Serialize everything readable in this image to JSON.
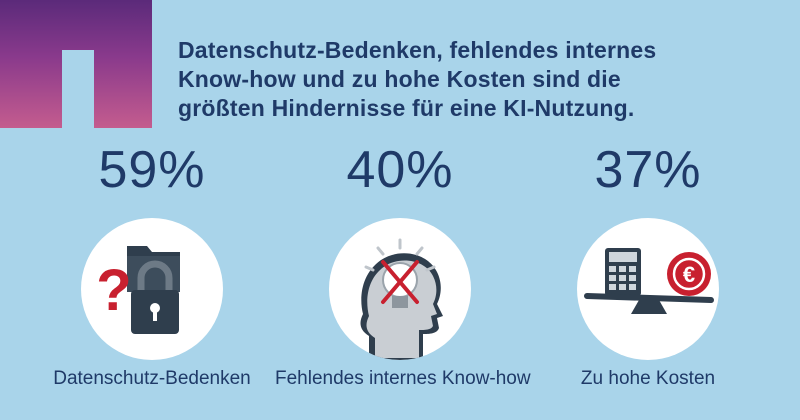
{
  "headline": {
    "line1": "Datenschutz-Bedenken, fehlendes internes",
    "line2": "Know-how und zu hohe Kosten sind die",
    "line3": "größten Hindernisse für eine KI-Nutzung."
  },
  "stats": [
    {
      "percent": "59%",
      "caption": "Datenschutz-Bedenken",
      "icon": "padlock-folder-question-icon"
    },
    {
      "percent": "40%",
      "caption": "Fehlendes internes Know-how",
      "icon": "head-lightbulb-cross-icon"
    },
    {
      "percent": "37%",
      "caption": "Zu hohe Kosten",
      "icon": "calculator-euro-scale-icon"
    }
  ],
  "icon_labels": {
    "euro": "€",
    "question": "?"
  },
  "colors": {
    "background": "#a9d4ea",
    "text": "#1f3a68",
    "accent_red": "#c8202f",
    "icon_dark": "#2f3e4d",
    "corner_gradient_top": "#5b2a7a",
    "corner_gradient_bottom": "#c45c8e"
  }
}
